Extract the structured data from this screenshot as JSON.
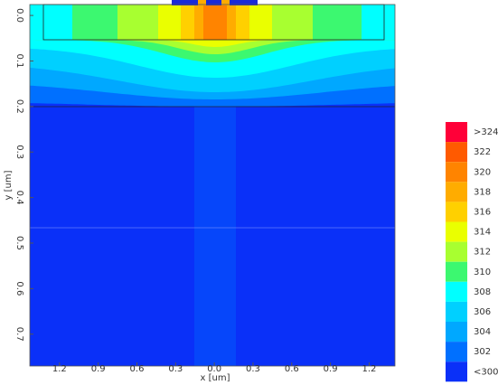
{
  "chart_data": {
    "type": "contour",
    "xlabel": "x [um]",
    "ylabel": "y [um]",
    "xlim": [
      -1.43,
      1.4
    ],
    "ylim": [
      -0.024,
      0.77
    ],
    "xticks": [
      {
        "value": -1.2,
        "label": "1.2"
      },
      {
        "value": -0.9,
        "label": "0.9"
      },
      {
        "value": -0.6,
        "label": "0.6"
      },
      {
        "value": -0.3,
        "label": "0.3"
      },
      {
        "value": 0.0,
        "label": "0.0"
      },
      0.3,
      0.6,
      0.9,
      1.2
    ],
    "yticks": [
      {
        "value": 0.0,
        "label": "0.0"
      },
      0.1,
      0.2,
      0.3,
      0.4,
      0.5,
      0.6,
      0.7
    ],
    "colorbar": {
      "labels": [
        ">324",
        "322",
        "320",
        "318",
        "316",
        "314",
        "312",
        "310",
        "308",
        "306",
        "304",
        "302",
        "<300"
      ],
      "colors": [
        "#ff0038",
        "#ff5a00",
        "#ff8400",
        "#ffac00",
        "#ffd000",
        "#eaff00",
        "#a8ff30",
        "#3cf870",
        "#00ffff",
        "#00d0ff",
        "#00a8ff",
        "#0070ff",
        "#0a30f8"
      ]
    }
  }
}
